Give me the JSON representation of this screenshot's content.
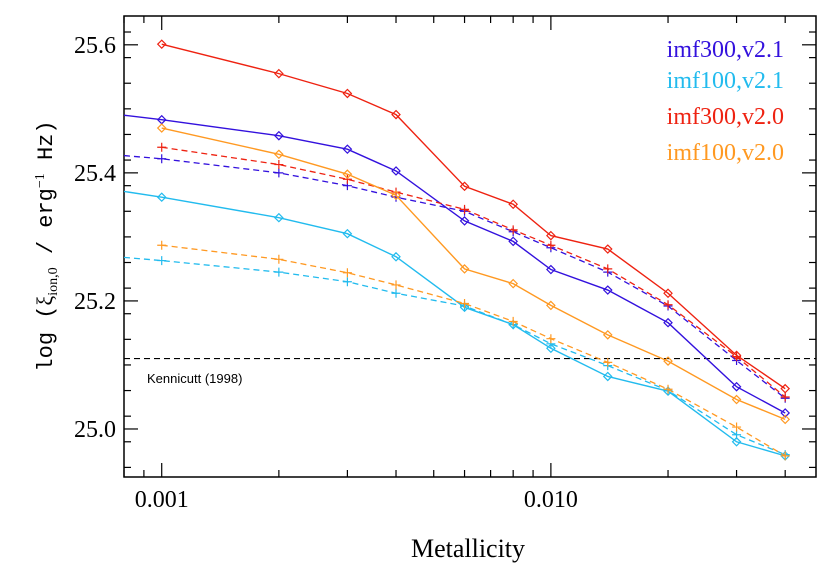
{
  "chart_data": {
    "type": "line",
    "title": "",
    "xlabel": "Metallicity",
    "ylabel_parts": {
      "prefix": "log (",
      "xi": "ξ",
      "xi_sub": "ion,0",
      "middle": " / erg",
      "sup": "−1",
      "suffix": " Hz)"
    },
    "xscale": "log",
    "xlim": [
      0.0008,
      0.048
    ],
    "ylim": [
      24.925,
      25.645
    ],
    "x_ticks": [
      0.001,
      0.01
    ],
    "x_tick_labels": [
      "0.001",
      "0.010"
    ],
    "y_ticks": [
      25.0,
      25.2,
      25.4,
      25.6
    ],
    "y_tick_labels": [
      "25.0",
      "25.2",
      "25.4",
      "25.6"
    ],
    "legend_position": "top-right",
    "x": [
      0.001,
      0.002,
      0.003,
      0.004,
      0.006,
      0.008,
      0.01,
      0.014,
      0.02,
      0.03,
      0.04
    ],
    "series": [
      {
        "name": "imf300,v2.1",
        "color": "#3311dd",
        "solid_extension_at_xmin": 25.49,
        "solid": [
          25.483,
          25.458,
          25.437,
          25.403,
          25.325,
          25.293,
          25.249,
          25.217,
          25.166,
          25.066,
          25.025
        ],
        "dashed_extension_at_xmin": 25.427,
        "dashed": [
          25.422,
          25.4,
          25.38,
          25.362,
          25.34,
          25.308,
          25.283,
          25.245,
          25.192,
          25.107,
          25.048
        ]
      },
      {
        "name": "imf100,v2.1",
        "color": "#22bbee",
        "solid_extension_at_xmin": 25.371,
        "solid": [
          25.362,
          25.33,
          25.305,
          25.269,
          25.19,
          25.163,
          25.126,
          25.082,
          25.059,
          24.98,
          24.958
        ],
        "dashed_extension_at_xmin": 25.268,
        "dashed": [
          25.263,
          25.245,
          25.23,
          25.212,
          25.192,
          25.163,
          25.133,
          25.099,
          25.06,
          24.991,
          24.96
        ]
      },
      {
        "name": "imf300,v2.0",
        "color": "#ee2211",
        "solid": [
          25.601,
          25.555,
          25.524,
          25.491,
          25.379,
          25.351,
          25.302,
          25.281,
          25.212,
          25.115,
          25.063
        ],
        "dashed": [
          25.44,
          25.413,
          25.39,
          25.37,
          25.343,
          25.311,
          25.287,
          25.25,
          25.194,
          25.113,
          25.05
        ]
      },
      {
        "name": "imf100,v2.0",
        "color": "#ff9922",
        "solid": [
          25.47,
          25.429,
          25.398,
          25.365,
          25.25,
          25.227,
          25.193,
          25.147,
          25.106,
          25.046,
          25.015
        ],
        "dashed": [
          25.287,
          25.265,
          25.244,
          25.225,
          25.196,
          25.168,
          25.141,
          25.104,
          25.062,
          25.003,
          24.958
        ]
      }
    ],
    "reference_line": {
      "label": "Kennicutt (1998)",
      "y": 25.11,
      "color": "#000000",
      "style": "dashed"
    }
  }
}
